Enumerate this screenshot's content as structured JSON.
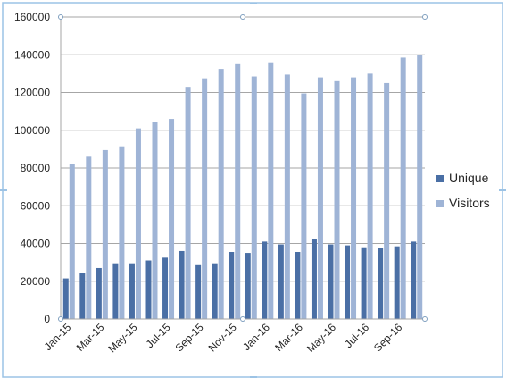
{
  "chart_data": {
    "type": "bar",
    "title": "",
    "xlabel": "",
    "ylabel": "",
    "ylim": [
      0,
      160000
    ],
    "yticks": [
      0,
      20000,
      40000,
      60000,
      80000,
      100000,
      120000,
      140000,
      160000
    ],
    "grid": true,
    "legend_position": "right",
    "categories": [
      "Jan-15",
      "Feb-15",
      "Mar-15",
      "Apr-15",
      "May-15",
      "Jun-15",
      "Jul-15",
      "Aug-15",
      "Sep-15",
      "Oct-15",
      "Nov-15",
      "Dec-15",
      "Jan-16",
      "Feb-16",
      "Mar-16",
      "Apr-16",
      "May-16",
      "Jun-16",
      "Jul-16",
      "Aug-16",
      "Sep-16",
      "Oct-16"
    ],
    "tick_labels": [
      "Jan-15",
      "Mar-15",
      "May-15",
      "Jul-15",
      "Sep-15",
      "Nov-15",
      "Jan-16",
      "Mar-16",
      "May-16",
      "Jul-16",
      "Sep-16"
    ],
    "series": [
      {
        "name": "Unique",
        "color": "#4a6fa5",
        "values": [
          21500,
          24500,
          27000,
          29500,
          29500,
          31000,
          32500,
          36000,
          28500,
          29500,
          35500,
          35000,
          41000,
          39500,
          35500,
          42500,
          39500,
          39000,
          38000,
          37500,
          38500,
          41000
        ]
      },
      {
        "name": "Visitors",
        "color": "#9fb4d6",
        "values": [
          82000,
          86000,
          89500,
          91500,
          101000,
          104500,
          106000,
          123000,
          127500,
          132500,
          135000,
          128500,
          136000,
          129500,
          119500,
          128000,
          126000,
          128000,
          130000,
          125000,
          138500,
          140000
        ]
      }
    ]
  },
  "frame": {
    "border_color": "#9cc3e5",
    "handle_color": "#7f9fbf"
  }
}
